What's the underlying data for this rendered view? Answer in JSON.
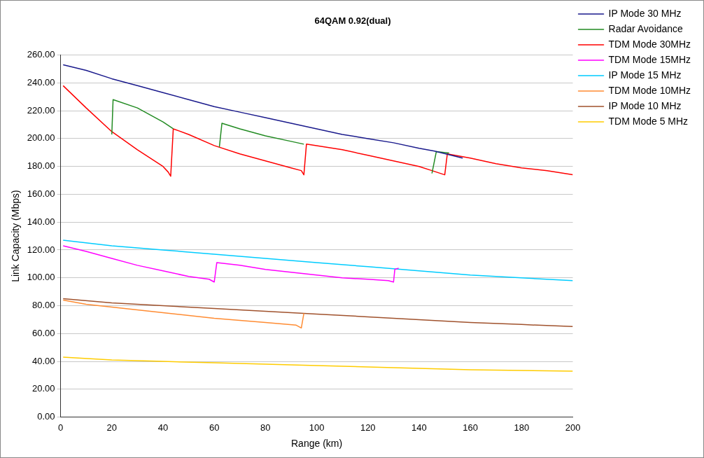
{
  "chart_data": {
    "type": "line",
    "title": "64QAM 0.92(dual)",
    "xlabel": "Range (km)",
    "ylabel": "Link Capacity (Mbps)",
    "xlim": [
      0,
      200
    ],
    "xticks": [
      0,
      20,
      40,
      60,
      80,
      100,
      120,
      140,
      160,
      180,
      200
    ],
    "ylim": [
      0,
      260
    ],
    "yticks": [
      {
        "value": 0,
        "label": "0.00"
      },
      {
        "value": 20,
        "label": "20.00"
      },
      {
        "value": 40,
        "label": "40.00"
      },
      {
        "value": 60,
        "label": "60.00"
      },
      {
        "value": 80,
        "label": "80.00"
      },
      {
        "value": 100,
        "label": "100.00"
      },
      {
        "value": 120,
        "label": "120.00"
      },
      {
        "value": 140,
        "label": "140.00"
      },
      {
        "value": 160,
        "label": "160.00"
      },
      {
        "value": 180,
        "label": "180.00"
      },
      {
        "value": 200,
        "label": "200.00"
      },
      {
        "value": 220,
        "label": "220.00"
      },
      {
        "value": 240,
        "label": "240.00"
      },
      {
        "value": 260,
        "label": "260.00"
      }
    ],
    "grid": "y",
    "legend": "top right",
    "marker": "none",
    "line_style": "solid",
    "series": [
      {
        "name": "IP Mode 30 MHz",
        "color": "#1a1a8c",
        "x": [
          1,
          10,
          20,
          30,
          40,
          50,
          60,
          70,
          80,
          90,
          100,
          110,
          120,
          130,
          140,
          146,
          157
        ],
        "values": [
          253,
          249,
          243,
          238,
          233,
          228,
          223,
          219,
          215,
          211,
          207,
          203,
          200,
          197,
          193,
          191,
          186
        ]
      },
      {
        "name": "Radar Avoidance",
        "color": "#228b22",
        "x": [
          20,
          20.5,
          30,
          40,
          44,
          50,
          62,
          63,
          70,
          80,
          90,
          95,
          100,
          145,
          146.7,
          151.7
        ],
        "values": [
          203,
          228,
          222,
          212,
          207,
          null,
          194,
          211,
          207,
          202,
          198,
          196,
          null,
          175,
          190.6,
          189.6
        ]
      },
      {
        "name": "TDM Mode 30MHz",
        "color": "#ff0000",
        "x": [
          1,
          10,
          20,
          30,
          40,
          42,
          43,
          44,
          50,
          60,
          70,
          80,
          90,
          94,
          95,
          96,
          110,
          120,
          130,
          140,
          145,
          150,
          151,
          160,
          170,
          180,
          190,
          200
        ],
        "values": [
          238,
          222,
          205,
          192,
          180,
          176,
          173,
          207,
          203,
          195,
          189,
          184,
          179,
          177,
          174,
          196,
          192,
          188,
          184,
          180,
          177,
          174,
          189,
          186,
          182,
          179,
          177,
          174
        ]
      },
      {
        "name": "TDM Mode 15MHz",
        "color": "#ff00ff",
        "x": [
          1,
          10,
          20,
          30,
          40,
          50,
          58,
          60,
          61,
          70,
          80,
          90,
          100,
          110,
          120,
          128,
          130,
          130.5,
          132
        ],
        "values": [
          123,
          119,
          114,
          109,
          105,
          101,
          99,
          97,
          111,
          109,
          106,
          104,
          102,
          100,
          99,
          98,
          97,
          106,
          107
        ]
      },
      {
        "name": "IP Mode 15 MHz",
        "color": "#00ccff",
        "x": [
          1,
          20,
          40,
          60,
          80,
          100,
          120,
          140,
          160,
          180,
          200
        ],
        "values": [
          127,
          123,
          120,
          117,
          114,
          111,
          108,
          105,
          102,
          100,
          98
        ]
      },
      {
        "name": "TDM Mode 10MHz",
        "color": "#ff8c33",
        "x": [
          1,
          10,
          20,
          40,
          60,
          80,
          92,
          94,
          95
        ],
        "values": [
          84,
          81,
          79,
          75,
          71,
          68,
          66,
          64,
          74.5
        ]
      },
      {
        "name": "IP Mode 10 MHz",
        "color": "#a0522d",
        "x": [
          1,
          20,
          40,
          60,
          80,
          100,
          120,
          140,
          160,
          180,
          200
        ],
        "values": [
          85,
          82,
          80,
          78,
          76,
          74,
          72,
          70,
          68,
          66.5,
          65
        ]
      },
      {
        "name": "TDM Mode 5 MHz",
        "color": "#ffcc00",
        "x": [
          1,
          20,
          40,
          60,
          80,
          100,
          120,
          140,
          160,
          200
        ],
        "values": [
          43,
          41,
          40,
          39,
          38,
          37,
          36,
          35,
          34,
          33
        ]
      }
    ]
  }
}
